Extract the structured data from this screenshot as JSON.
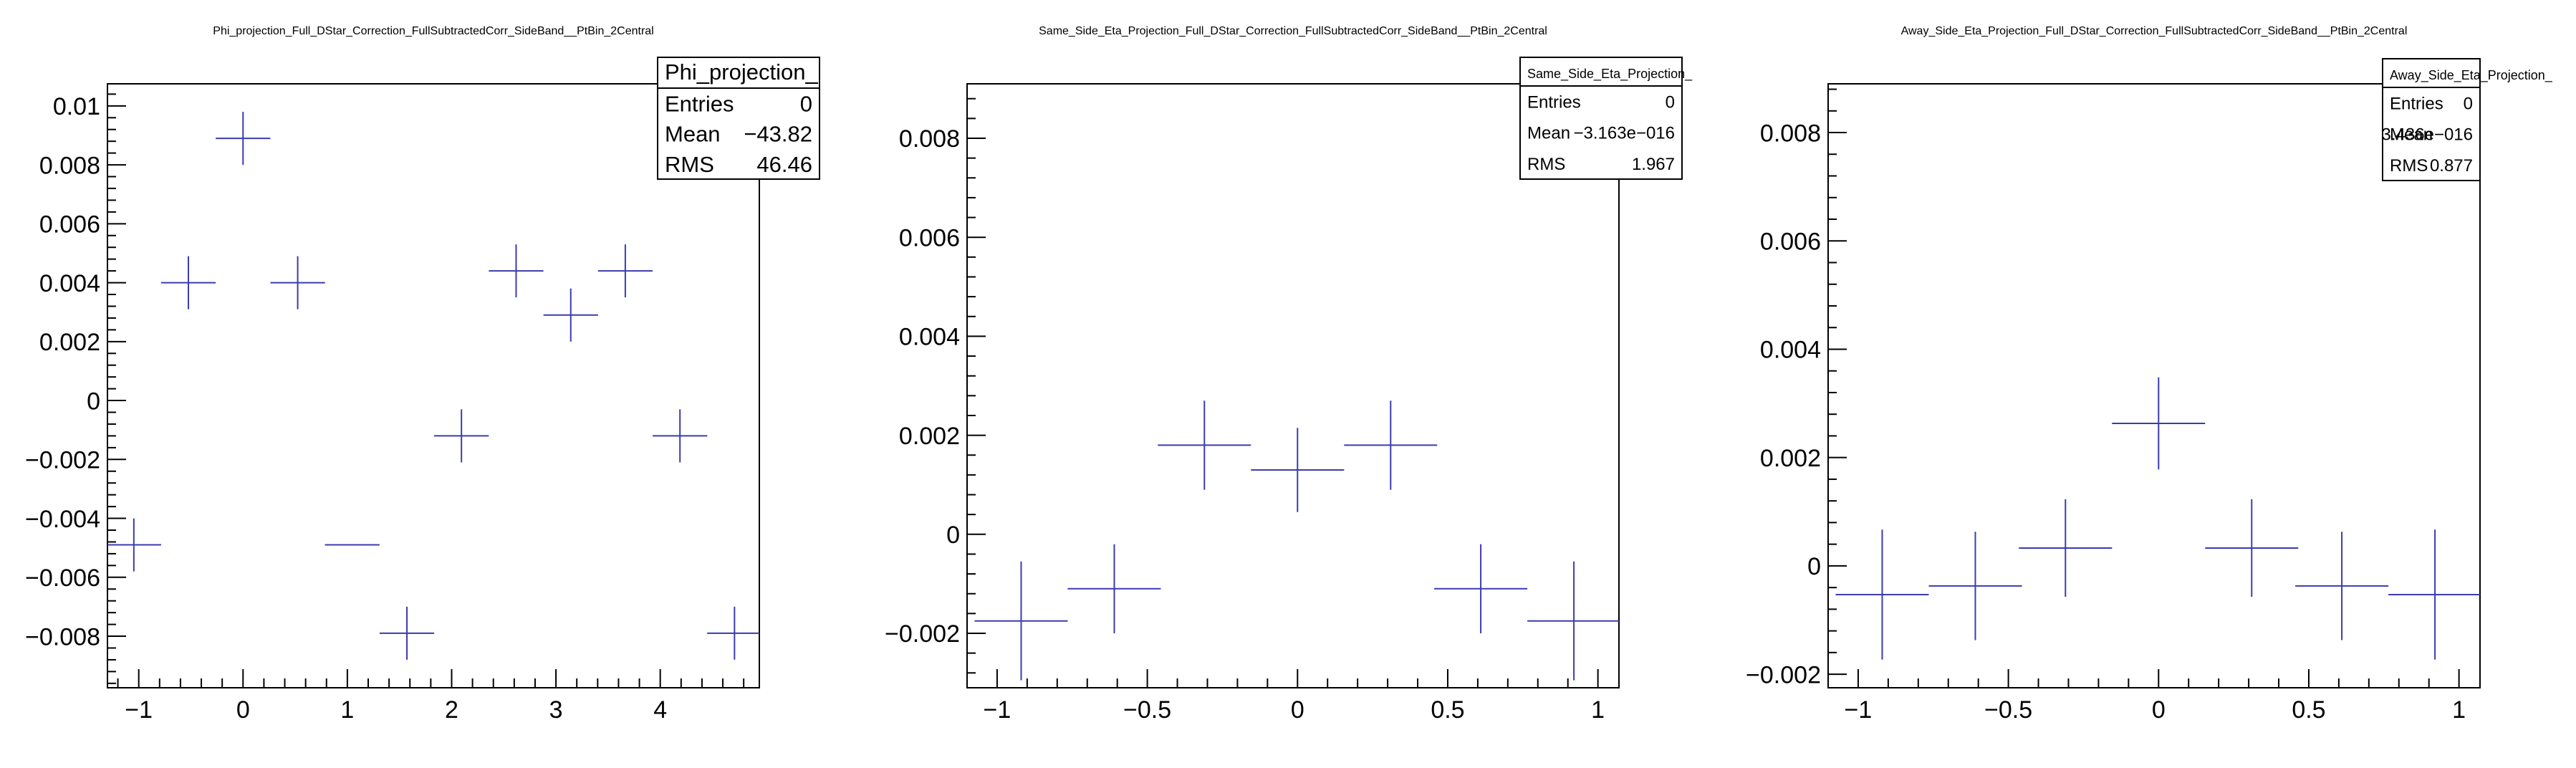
{
  "chart_data": [
    {
      "type": "scatter",
      "title": "Phi_projection_Full_DStar_Correction_FullSubtractedCorr_SideBand__PtBin_2Central",
      "xlabel": "",
      "ylabel": "",
      "xlim": [
        -1.3,
        4.95
      ],
      "ylim": [
        -0.00975,
        0.01075
      ],
      "x_ticks": [
        -1,
        0,
        1,
        2,
        3,
        4
      ],
      "x_tick_labels": [
        "−1",
        "0",
        "1",
        "2",
        "3",
        "4"
      ],
      "y_ticks": [
        -0.008,
        -0.006,
        -0.004,
        -0.002,
        0,
        0.002,
        0.004,
        0.006,
        0.008,
        0.01
      ],
      "y_tick_labels": [
        "−0.008",
        "−0.006",
        "−0.004",
        "−0.002",
        "0",
        "0.002",
        "0.004",
        "0.006",
        "0.008",
        "0.01"
      ],
      "x_half_width": 0.2618,
      "points": [
        {
          "x": -1.047,
          "y": -0.0049,
          "yerr": 0.0009
        },
        {
          "x": -0.524,
          "y": 0.004,
          "yerr": 0.0009
        },
        {
          "x": 0.0,
          "y": 0.0089,
          "yerr": 0.0009
        },
        {
          "x": 0.524,
          "y": 0.004,
          "yerr": 0.0009
        },
        {
          "x": 1.047,
          "y": -0.0049,
          "yerr": 0.0
        },
        {
          "x": 1.571,
          "y": -0.0079,
          "yerr": 0.0009
        },
        {
          "x": 2.094,
          "y": -0.0012,
          "yerr": 0.0009
        },
        {
          "x": 2.618,
          "y": 0.0044,
          "yerr": 0.0009
        },
        {
          "x": 3.142,
          "y": 0.0029,
          "yerr": 0.0009
        },
        {
          "x": 3.665,
          "y": 0.0044,
          "yerr": 0.0009
        },
        {
          "x": 4.189,
          "y": -0.0012,
          "yerr": 0.0009
        },
        {
          "x": 4.712,
          "y": -0.0079,
          "yerr": 0.0009
        }
      ],
      "stats": {
        "name": "Phi_projection_",
        "rows": [
          {
            "label": "Entries",
            "value": "0"
          },
          {
            "label": "Mean",
            "value": "−43.82"
          },
          {
            "label": "RMS",
            "value": "46.46"
          }
        ]
      },
      "legend": "top-right",
      "color": "#3b3bb0"
    },
    {
      "type": "scatter",
      "title": "Same_Side_Eta_Projection_Full_DStar_Correction_FullSubtractedCorr_SideBand__PtBin_2Central",
      "xlabel": "",
      "ylabel": "",
      "xlim": [
        -1.1,
        1.07
      ],
      "ylim": [
        -0.0031,
        0.0091
      ],
      "x_ticks": [
        -1,
        -0.5,
        0,
        0.5,
        1
      ],
      "x_tick_labels": [
        "−1",
        "−0.5",
        "0",
        "0.5",
        "1"
      ],
      "y_ticks": [
        -0.002,
        0,
        0.002,
        0.004,
        0.006,
        0.008
      ],
      "y_tick_labels": [
        "−0.002",
        "0",
        "0.002",
        "0.004",
        "0.006",
        "0.008"
      ],
      "x_half_width": 0.155,
      "points": [
        {
          "x": -0.92,
          "y": -0.00175,
          "yerr": 0.0012
        },
        {
          "x": -0.61,
          "y": -0.0011,
          "yerr": 0.0009
        },
        {
          "x": -0.31,
          "y": 0.0018,
          "yerr": 0.0009
        },
        {
          "x": 0.0,
          "y": 0.0013,
          "yerr": 0.00085
        },
        {
          "x": 0.31,
          "y": 0.0018,
          "yerr": 0.0009
        },
        {
          "x": 0.61,
          "y": -0.0011,
          "yerr": 0.0009
        },
        {
          "x": 0.92,
          "y": -0.00175,
          "yerr": 0.0012
        }
      ],
      "stats": {
        "name": "Same_Side_Eta_Projection_",
        "rows": [
          {
            "label": "Entries",
            "value": "0"
          },
          {
            "label": "Mean",
            "value": "−3.163e−016"
          },
          {
            "label": "RMS",
            "value": "1.967"
          }
        ]
      },
      "legend": "top-right",
      "color": "#3b3bb0"
    },
    {
      "type": "scatter",
      "title": "Away_Side_Eta_Projection_Full_DStar_Correction_FullSubtractedCorr_SideBand__PtBin_2Central",
      "xlabel": "",
      "ylabel": "",
      "xlim": [
        -1.1,
        1.07
      ],
      "ylim": [
        -0.00225,
        0.0089
      ],
      "x_ticks": [
        -1,
        -0.5,
        0,
        0.5,
        1
      ],
      "x_tick_labels": [
        "−1",
        "−0.5",
        "0",
        "0.5",
        "1"
      ],
      "y_ticks": [
        -0.002,
        0,
        0.002,
        0.004,
        0.006,
        0.008
      ],
      "y_tick_labels": [
        "−0.002",
        "0",
        "0.002",
        "0.004",
        "0.006",
        "0.008"
      ],
      "x_half_width": 0.155,
      "points": [
        {
          "x": -0.92,
          "y": -0.00053,
          "yerr": 0.0012
        },
        {
          "x": -0.61,
          "y": -0.00037,
          "yerr": 0.001
        },
        {
          "x": -0.31,
          "y": 0.00033,
          "yerr": 0.0009
        },
        {
          "x": 0.0,
          "y": 0.00263,
          "yerr": 0.00085
        },
        {
          "x": 0.31,
          "y": 0.00033,
          "yerr": 0.0009
        },
        {
          "x": 0.61,
          "y": -0.00037,
          "yerr": 0.001
        },
        {
          "x": 0.92,
          "y": -0.00053,
          "yerr": 0.0012
        }
      ],
      "stats": {
        "name": "Away_Side_Eta_Projection_",
        "rows": [
          {
            "label": "Entries",
            "value": "0"
          },
          {
            "label": "Mean",
            "value": "3.436e−016"
          },
          {
            "label": "RMS",
            "value": "0.877"
          }
        ]
      },
      "legend": "top-right",
      "color": "#3b3bb0"
    }
  ]
}
